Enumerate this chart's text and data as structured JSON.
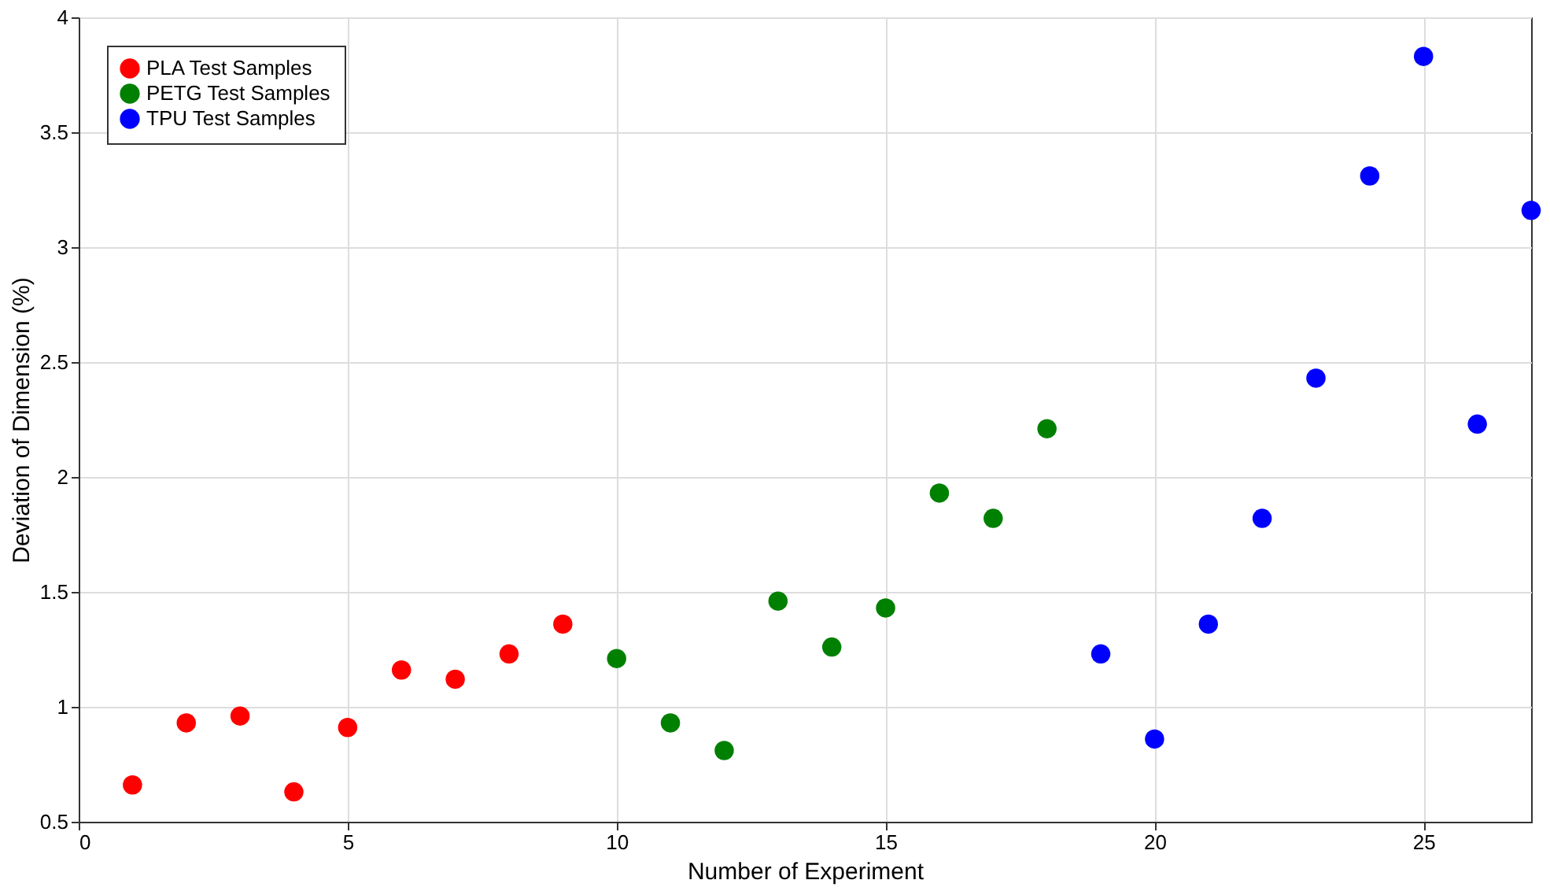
{
  "chart_data": {
    "type": "scatter",
    "xlabel": "Number of Experiment",
    "ylabel": "Deviation of Dimension (%)",
    "xlim": [
      0,
      27
    ],
    "xticks": [
      0,
      5,
      10,
      15,
      20,
      25
    ],
    "ylim": [
      0.5,
      4
    ],
    "yticks": [
      0.5,
      1,
      1.5,
      2,
      2.5,
      3,
      3.5,
      4
    ],
    "grid": true,
    "legend": "top left",
    "marker": "circle",
    "series": [
      {
        "name": "PLA Test Samples",
        "color": "#ff0000",
        "x": [
          1,
          2,
          3,
          4,
          5,
          6,
          7,
          8,
          9
        ],
        "values": [
          0.66,
          0.93,
          0.96,
          0.63,
          0.91,
          1.16,
          1.12,
          1.23,
          1.36
        ]
      },
      {
        "name": "PETG Test Samples",
        "color": "#008000",
        "x": [
          10,
          11,
          12,
          13,
          14,
          15,
          16,
          17,
          18
        ],
        "values": [
          1.21,
          0.93,
          0.81,
          1.46,
          1.26,
          1.43,
          1.93,
          1.82,
          2.21
        ]
      },
      {
        "name": "TPU Test Samples",
        "color": "#0000ff",
        "x": [
          19,
          20,
          21,
          22,
          23,
          24,
          25,
          26,
          27
        ],
        "values": [
          1.23,
          0.86,
          1.36,
          1.82,
          2.43,
          3.31,
          3.83,
          2.23,
          3.16
        ]
      }
    ]
  }
}
